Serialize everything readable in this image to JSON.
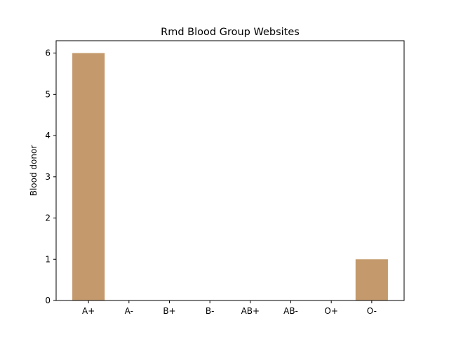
{
  "chart_data": {
    "type": "bar",
    "title": "Rmd Blood Group Websites",
    "xlabel": "",
    "ylabel": "Blood donor",
    "categories": [
      "A+",
      "A-",
      "B+",
      "B-",
      "AB+",
      "AB-",
      "O+",
      "O-"
    ],
    "values": [
      6,
      0,
      0,
      0,
      0,
      0,
      0,
      1
    ],
    "ylim": [
      0,
      6.3
    ],
    "yticks": [
      0,
      1,
      2,
      3,
      4,
      5,
      6
    ],
    "bar_color": "#c49a6c",
    "grid": false,
    "legend": "none"
  }
}
